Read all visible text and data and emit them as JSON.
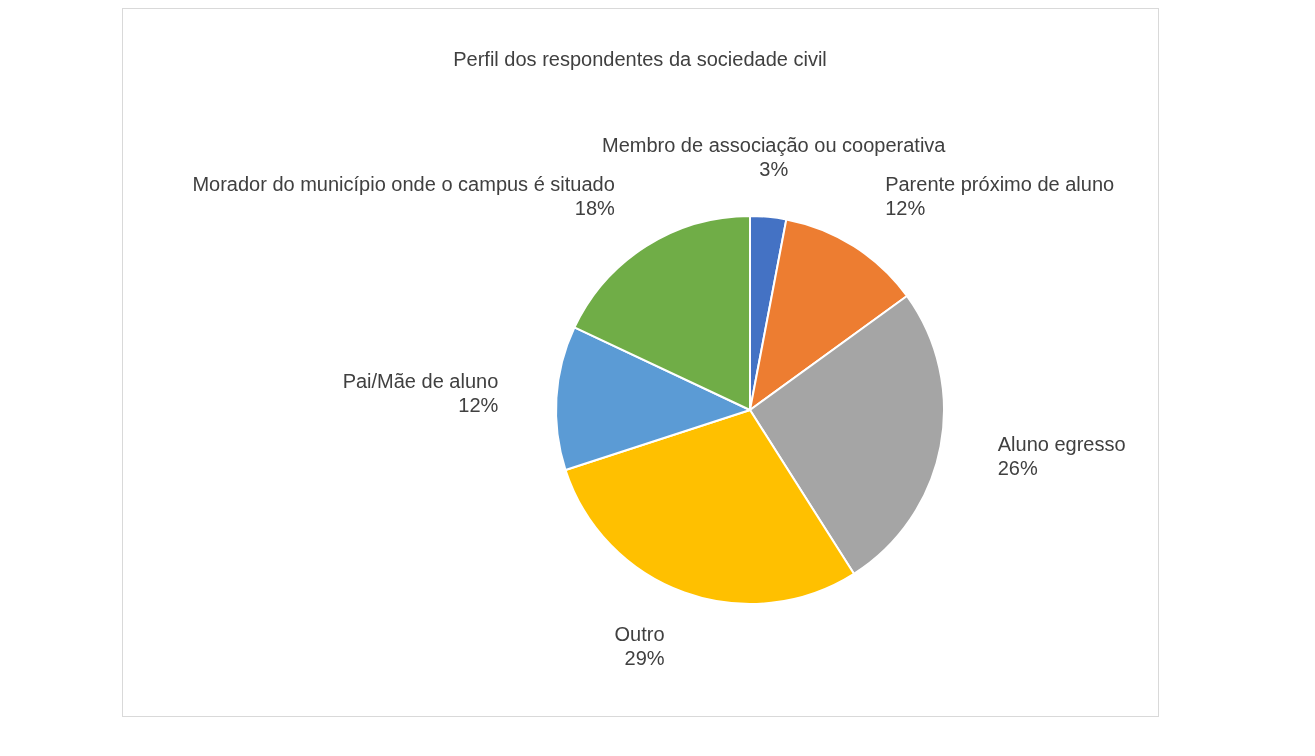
{
  "chart_data": {
    "type": "pie",
    "title": "Perfil dos respondentes da sociedade civil",
    "categories": [
      "Membro de associação ou cooperativa",
      "Parente próximo de aluno",
      "Aluno egresso",
      "Outro",
      "Pai/Mãe de aluno",
      "Morador do município onde o campus é situado"
    ],
    "values": [
      3,
      12,
      26,
      29,
      12,
      18
    ],
    "value_labels": [
      "3%",
      "12%",
      "26%",
      "29%",
      "12%",
      "18%"
    ],
    "colors": [
      "#4472c4",
      "#ed7d31",
      "#a5a5a5",
      "#ffc000",
      "#5b9bd5",
      "#70ad47"
    ],
    "legend": false
  }
}
